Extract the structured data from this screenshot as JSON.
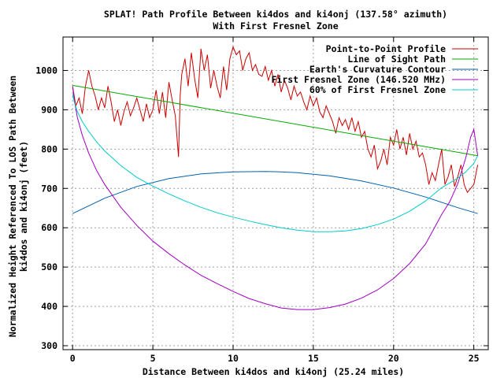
{
  "chart_data": {
    "type": "line",
    "title": "SPLAT! Path Profile Between ki4dos and ki4onj (137.58° azimuth)",
    "subtitle": "With First Fresnel Zone",
    "xlabel": "Distance Between ki4dos and ki4onj (25.24 miles)",
    "ylabel_line1": "Normalized Height Referenced To LOS Path Between",
    "ylabel_line2": "ki4dos and ki4onj (feet)",
    "xlim": [
      -0.6,
      25.9
    ],
    "ylim": [
      290,
      1085
    ],
    "x_ticks": [
      0,
      5,
      10,
      15,
      20,
      25
    ],
    "y_ticks": [
      300,
      400,
      500,
      600,
      700,
      800,
      900,
      1000
    ],
    "grid": true,
    "legend_position": "top-right",
    "series": [
      {
        "name": "Point-to-Point Profile",
        "color": "#cc0000",
        "x": [
          0,
          0.2,
          0.4,
          0.6,
          0.8,
          1.0,
          1.2,
          1.4,
          1.6,
          1.8,
          2.0,
          2.2,
          2.4,
          2.6,
          2.8,
          3.0,
          3.2,
          3.4,
          3.6,
          3.8,
          4.0,
          4.2,
          4.4,
          4.6,
          4.8,
          5.0,
          5.2,
          5.4,
          5.6,
          5.8,
          6.0,
          6.2,
          6.4,
          6.6,
          6.7,
          6.8,
          7.0,
          7.2,
          7.4,
          7.6,
          7.8,
          8.0,
          8.2,
          8.4,
          8.6,
          8.8,
          9.0,
          9.2,
          9.4,
          9.6,
          9.8,
          10.0,
          10.2,
          10.4,
          10.6,
          10.8,
          11.0,
          11.2,
          11.4,
          11.6,
          11.8,
          12.0,
          12.2,
          12.4,
          12.6,
          12.8,
          13.0,
          13.2,
          13.4,
          13.6,
          13.8,
          14.0,
          14.2,
          14.4,
          14.6,
          14.8,
          15.0,
          15.2,
          15.4,
          15.6,
          15.8,
          16.0,
          16.2,
          16.4,
          16.6,
          16.8,
          17.0,
          17.2,
          17.4,
          17.6,
          17.8,
          18.0,
          18.2,
          18.4,
          18.6,
          18.8,
          19.0,
          19.2,
          19.4,
          19.6,
          19.8,
          20.0,
          20.2,
          20.4,
          20.6,
          20.8,
          21.0,
          21.2,
          21.4,
          21.6,
          21.8,
          22.0,
          22.2,
          22.4,
          22.6,
          22.8,
          23.0,
          23.2,
          23.4,
          23.6,
          23.8,
          24.0,
          24.2,
          24.4,
          24.6,
          24.8,
          25.0,
          25.24
        ],
        "y": [
          960,
          910,
          930,
          890,
          960,
          1000,
          960,
          935,
          900,
          930,
          905,
          960,
          920,
          870,
          900,
          860,
          895,
          920,
          885,
          905,
          930,
          900,
          870,
          915,
          880,
          900,
          950,
          890,
          945,
          880,
          970,
          925,
          885,
          780,
          935,
          990,
          1030,
          960,
          1045,
          980,
          930,
          1055,
          1000,
          1040,
          955,
          1000,
          960,
          930,
          1010,
          950,
          1030,
          1060,
          1040,
          1050,
          1000,
          1030,
          1045,
          1000,
          1015,
          990,
          985,
          1010,
          975,
          1000,
          960,
          990,
          945,
          975,
          955,
          925,
          960,
          935,
          945,
          920,
          900,
          935,
          910,
          930,
          895,
          880,
          910,
          890,
          870,
          840,
          880,
          860,
          875,
          850,
          880,
          845,
          870,
          830,
          845,
          800,
          780,
          810,
          750,
          770,
          800,
          760,
          830,
          810,
          850,
          800,
          830,
          785,
          840,
          800,
          820,
          780,
          790,
          760,
          710,
          740,
          720,
          760,
          800,
          710,
          730,
          760,
          705,
          730,
          760,
          710,
          690,
          700,
          710,
          760
        ]
      },
      {
        "name": "Line of Sight Path",
        "color": "#00aa00",
        "x": [
          0,
          25.24
        ],
        "y": [
          962,
          783
        ]
      },
      {
        "name": "Earth's Curvature Contour",
        "color": "#0060b0",
        "x": [
          0,
          2,
          4,
          6,
          8,
          10,
          12,
          13,
          14,
          16,
          18,
          20,
          22,
          24,
          25.24
        ],
        "y": [
          636,
          675,
          705,
          725,
          737,
          742,
          743,
          742,
          740,
          732,
          719,
          701,
          678,
          651,
          636
        ]
      },
      {
        "name": "First Fresnel Zone (146.520 MHz)",
        "color": "#a000c0",
        "x": [
          0,
          0.1,
          0.3,
          0.6,
          1.0,
          1.5,
          2,
          3,
          4,
          5,
          6,
          7,
          8,
          9,
          10,
          11,
          12,
          13,
          14,
          15,
          16,
          17,
          18,
          19,
          20,
          21,
          22,
          23,
          23.5,
          24,
          24.5,
          24.8,
          25.0,
          25.24
        ],
        "y": [
          960,
          925,
          880,
          835,
          790,
          745,
          710,
          652,
          606,
          566,
          534,
          505,
          479,
          458,
          438,
          420,
          407,
          396,
          392,
          392,
          397,
          406,
          421,
          442,
          471,
          509,
          559,
          634,
          666,
          712,
          778,
          830,
          850,
          783
        ]
      },
      {
        "name": "60% of First Fresnel Zone",
        "color": "#00cccc",
        "x": [
          0,
          0.1,
          0.3,
          0.6,
          1.0,
          1.5,
          2,
          3,
          4,
          5,
          6,
          7,
          8,
          9,
          10,
          11,
          12,
          13,
          14,
          15,
          16,
          17,
          18,
          19,
          20,
          21,
          22,
          23,
          24,
          24.5,
          25.0,
          25.24
        ],
        "y": [
          940,
          920,
          895,
          870,
          845,
          818,
          795,
          758,
          728,
          706,
          686,
          668,
          652,
          638,
          627,
          617,
          608,
          600,
          594,
          590,
          590,
          592,
          598,
          608,
          622,
          642,
          668,
          702,
          726,
          742,
          764,
          783
        ]
      }
    ]
  }
}
